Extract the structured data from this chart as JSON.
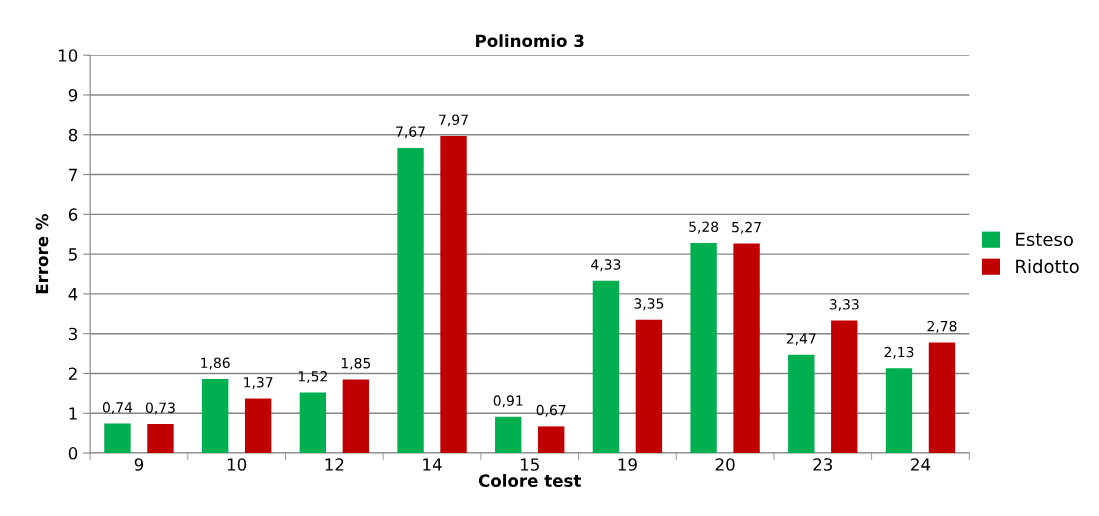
{
  "chart_data": {
    "type": "bar",
    "title": "Polinomio 3",
    "xlabel": "Colore test",
    "ylabel": "Errore %",
    "categories": [
      "9",
      "10",
      "12",
      "14",
      "15",
      "19",
      "20",
      "23",
      "24"
    ],
    "series": [
      {
        "name": "Esteso",
        "color": "#00b050",
        "values": [
          0.74,
          1.86,
          1.52,
          7.67,
          0.91,
          4.33,
          5.28,
          2.47,
          2.13
        ],
        "value_labels": [
          "0,74",
          "1,86",
          "1,52",
          "7,67",
          "0,91",
          "4,33",
          "5,28",
          "2,47",
          "2,13"
        ]
      },
      {
        "name": "Ridotto",
        "color": "#c00000",
        "values": [
          0.73,
          1.37,
          1.85,
          7.97,
          0.67,
          3.35,
          5.27,
          3.33,
          2.78
        ],
        "value_labels": [
          "0,73",
          "1,37",
          "1,85",
          "7,97",
          "0,67",
          "3,35",
          "5,27",
          "3,33",
          "2,78"
        ]
      }
    ],
    "ylim": [
      0,
      10
    ],
    "yticks": [
      0,
      1,
      2,
      3,
      4,
      5,
      6,
      7,
      8,
      9,
      10
    ],
    "grid": "y",
    "legend": "right"
  }
}
